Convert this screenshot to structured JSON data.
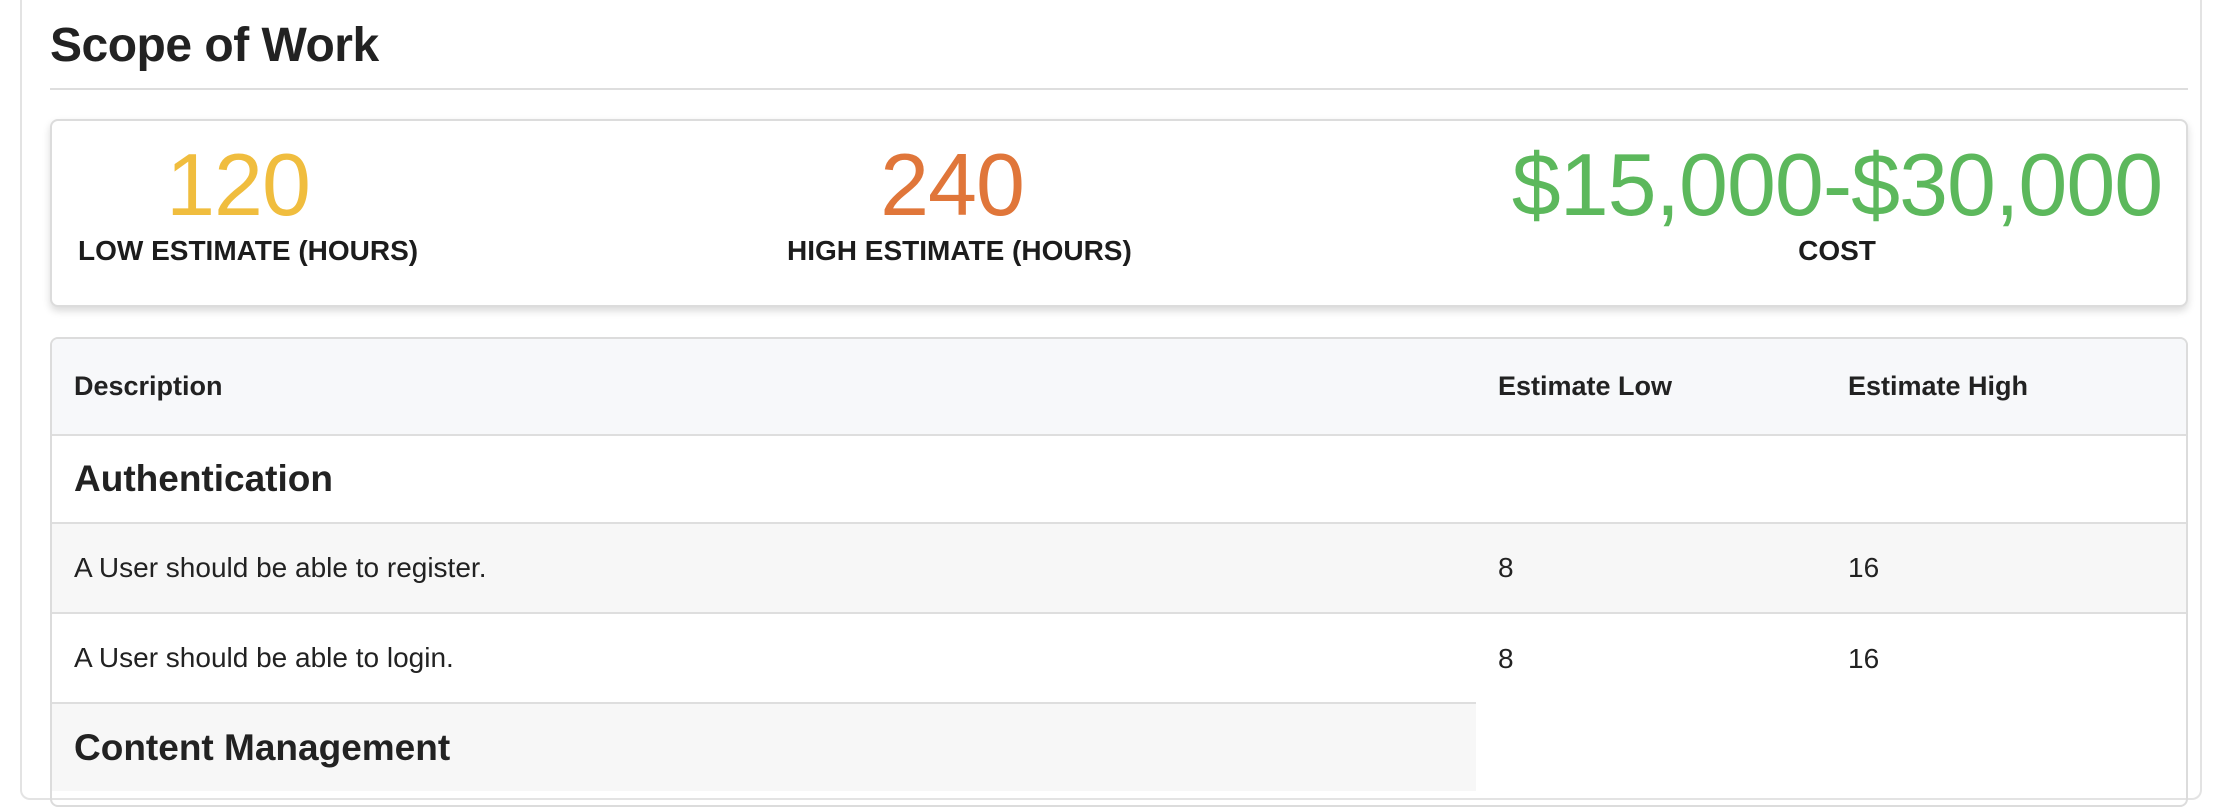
{
  "page": {
    "title": "Scope of Work"
  },
  "summary": {
    "low": {
      "value": "120",
      "label": "LOW ESTIMATE (HOURS)",
      "color": "#f0bd3e"
    },
    "high": {
      "value": "240",
      "label": "HIGH ESTIMATE (HOURS)",
      "color": "#e0763a"
    },
    "cost": {
      "value": "$15,000-$30,000",
      "label": "COST",
      "color": "#5cb85c"
    }
  },
  "table": {
    "headers": {
      "description": "Description",
      "estimate_low": "Estimate Low",
      "estimate_high": "Estimate High"
    },
    "sections": [
      {
        "title": "Authentication",
        "items": [
          {
            "description": "A User should be able to register.",
            "low": "8",
            "high": "16"
          },
          {
            "description": "A User should be able to login.",
            "low": "8",
            "high": "16"
          }
        ]
      },
      {
        "title": "Content Management",
        "items": []
      }
    ]
  }
}
